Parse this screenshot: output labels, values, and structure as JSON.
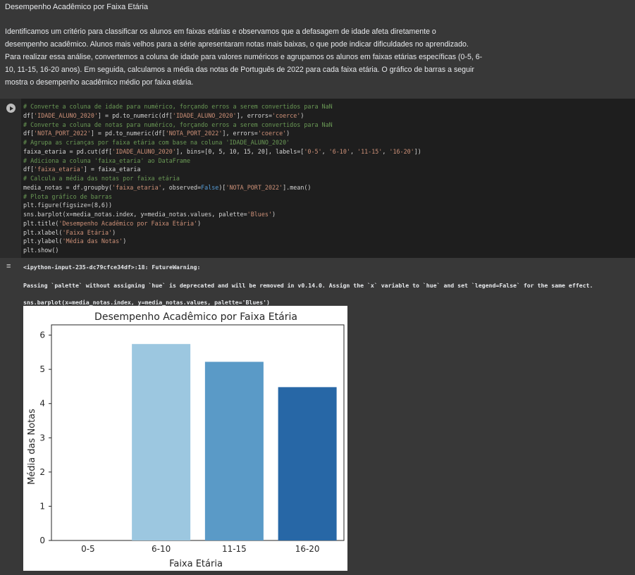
{
  "markdown": {
    "title": "Desempenho Acadêmico por Faixa Etária",
    "paragraph_lines": [
      "Identificamos um critério para classificar os alunos em faixas etárias e observamos que a defasagem de idade afeta diretamente o",
      "desempenho acadêmico. Alunos mais velhos para a série apresentaram notas mais baixas, o que pode indicar dificuldades no aprendizado.",
      "Para realizar essa análise, convertemos a coluna de idade para valores numéricos e agrupamos os alunos em faixas etárias específicas (0-5, 6-",
      "10, 11-15, 16-20 anos). Em seguida, calculamos a média das notas de Português de 2022 para cada faixa etária. O gráfico de barras a seguir",
      "mostra o desempenho acadêmico médio por faixa etária."
    ]
  },
  "code": {
    "lines": [
      "# Converte a coluna de idade para numérico, forçando erros a serem convertidos para NaN",
      "df['IDADE_ALUNO_2020'] = pd.to_numeric(df['IDADE_ALUNO_2020'], errors='coerce')",
      "# Converte a coluna de notas para numérico, forçando erros a serem convertidos para NaN",
      "df['NOTA_PORT_2022'] = pd.to_numeric(df['NOTA_PORT_2022'], errors='coerce')",
      "# Agrupa as crianças por faixa etária com base na coluna 'IDADE_ALUNO_2020'",
      "faixa_etaria = pd.cut(df['IDADE_ALUNO_2020'], bins=[0, 5, 10, 15, 20], labels=['0-5', '6-10', '11-15', '16-20'])",
      "# Adiciona a coluna 'faixa_etaria' ao DataFrame",
      "df['faixa_etaria'] = faixa_etaria",
      "# Calcula a média das notas por faixa etária",
      "media_notas = df.groupby('faixa_etaria', observed=False)['NOTA_PORT_2022'].mean()",
      "# Plota gráfico de barras",
      "plt.figure(figsize=(8,6))",
      "sns.barplot(x=media_notas.index, y=media_notas.values, palette='Blues')",
      "plt.title('Desempenho Acadêmico por Faixa Etária')",
      "plt.xlabel('Faixa Etária')",
      "plt.ylabel('Média das Notas')",
      "plt.show()"
    ]
  },
  "output": {
    "warning_header": "<ipython-input-235-dc79cfce34df>:18: FutureWarning:",
    "warning_body": "Passing `palette` without assigning `hue` is deprecated and will be removed in v0.14.0. Assign the `x` variable to `hue` and set `legend=False` for the same effect.",
    "warning_code": "  sns.barplot(x=media_notas.index, y=media_notas.values, palette='Blues')"
  },
  "chart_data": {
    "type": "bar",
    "title": "Desempenho Acadêmico por Faixa Etária",
    "xlabel": "Faixa Etária",
    "ylabel": "Média das Notas",
    "categories": [
      "0-5",
      "6-10",
      "11-15",
      "16-20"
    ],
    "values": [
      0,
      5.74,
      5.22,
      4.48
    ],
    "ylim": [
      0,
      6.3
    ],
    "yticks": [
      0,
      1,
      2,
      3,
      4,
      5,
      6
    ],
    "colors": [
      "#e3eef8",
      "#9cc7e0",
      "#5a9ac7",
      "#2767a6"
    ],
    "grid": false
  }
}
